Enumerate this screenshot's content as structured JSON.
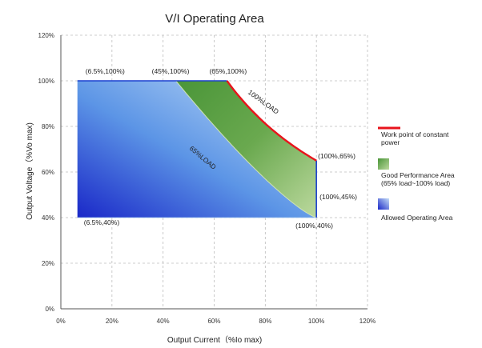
{
  "chart_data": {
    "type": "area",
    "title": "V/I   Operating   Area",
    "xlabel": "Output Current（%Io max)",
    "ylabel": "Output Voltage（%Vo max)",
    "xlim": [
      0,
      120
    ],
    "ylim": [
      0,
      120
    ],
    "x_ticks": [
      0,
      20,
      40,
      60,
      80,
      100,
      120
    ],
    "y_ticks": [
      0,
      20,
      40,
      60,
      80,
      100,
      120
    ],
    "x_tick_labels": [
      "0%",
      "20%",
      "40%",
      "60%",
      "80%",
      "100%",
      "120%"
    ],
    "y_tick_labels": [
      "0%",
      "20%",
      "40%",
      "60%",
      "80%",
      "100%",
      "120%"
    ],
    "grid": true,
    "grid_style": "dashed",
    "legend_position": "right",
    "colors": {
      "allowed_area": "#2233cc",
      "allowed_area_light": "#a8d0f4",
      "good_area": "#4f9a3d",
      "good_area_light": "#b5d596",
      "constant_power": "#e8141c",
      "boundary": "#1a3fcf"
    },
    "series": [
      {
        "name": "Allowed  Operating   Area",
        "points": [
          [
            6.5,
            40
          ],
          [
            6.5,
            100
          ],
          [
            65,
            100
          ],
          [
            100,
            65
          ],
          [
            100,
            40
          ]
        ]
      },
      {
        "name": "Good Performance Area",
        "points": [
          [
            45,
            100
          ],
          [
            65,
            100
          ],
          [
            100,
            65
          ],
          [
            100,
            40
          ]
        ]
      },
      {
        "name": "Work point of constant power",
        "points": [
          [
            65,
            100
          ],
          [
            100,
            65
          ]
        ]
      }
    ],
    "point_labels": [
      {
        "text": "(6.5%,100%)",
        "x": 6.5,
        "y": 100
      },
      {
        "text": "(45%,100%)",
        "x": 45,
        "y": 100
      },
      {
        "text": "(65%,100%)",
        "x": 65,
        "y": 100
      },
      {
        "text": "(100%,65%)",
        "x": 100,
        "y": 65
      },
      {
        "text": "(100%,45%)",
        "x": 100,
        "y": 45
      },
      {
        "text": "(100%,40%)",
        "x": 100,
        "y": 40
      },
      {
        "text": "(6.5%,40%)",
        "x": 6.5,
        "y": 40
      }
    ],
    "curve_labels": [
      {
        "text": "100%LOAD",
        "x": 80,
        "y": 85
      },
      {
        "text": "65%LOAD",
        "x": 60,
        "y": 62
      }
    ],
    "legend": [
      {
        "text": "Work point of constant\npower"
      },
      {
        "text": "Good Performance Area\n(65% load~100%  load)"
      },
      {
        "text": "Allowed  Operating   Area"
      }
    ]
  }
}
